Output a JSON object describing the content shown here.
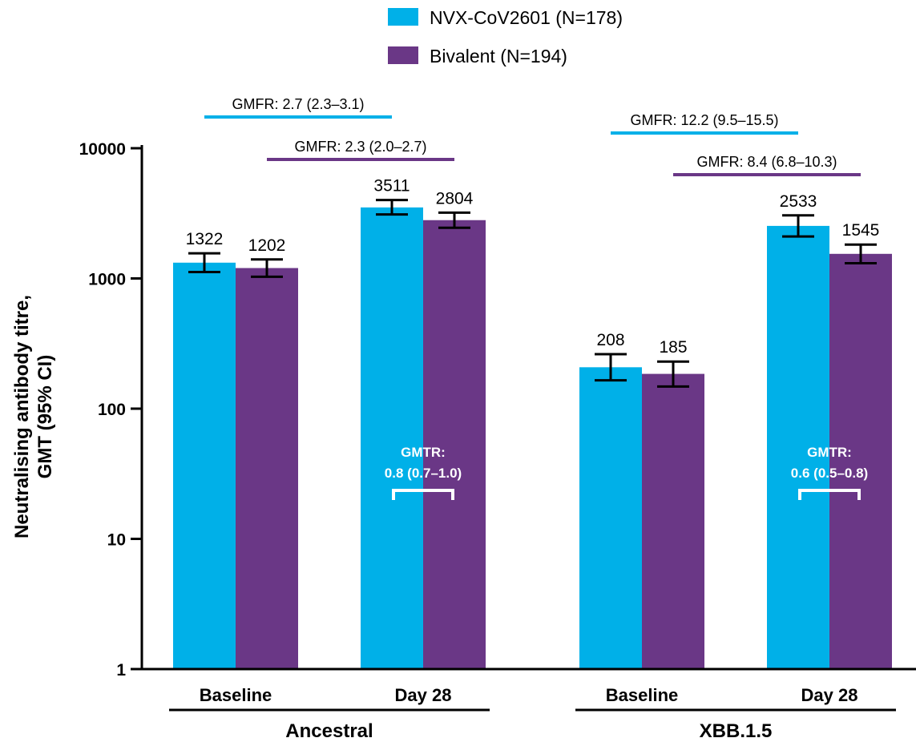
{
  "chart_data": {
    "type": "bar",
    "yscale": "log",
    "ylim": [
      1,
      10000
    ],
    "yticks": [
      1,
      10,
      100,
      1000,
      10000
    ],
    "ylabel": [
      "Neutralising antibody titre,",
      "GMT (95% CI)"
    ],
    "colors": {
      "NVX-CoV2601": "#00b0e8",
      "Bivalent": "#6a3786"
    },
    "series": [
      {
        "name": "NVX-CoV2601 (N=178)",
        "key": "NVX-CoV2601"
      },
      {
        "name": "Bivalent (N=194)",
        "key": "Bivalent"
      }
    ],
    "groups": [
      {
        "label": "Ancestral",
        "timepoints": [
          {
            "label": "Baseline",
            "bars": [
              {
                "series": "NVX-CoV2601",
                "value": 1322,
                "ci": [
                  1120,
                  1560
                ]
              },
              {
                "series": "Bivalent",
                "value": 1202,
                "ci": [
                  1030,
                  1400
                ]
              }
            ]
          },
          {
            "label": "Day 28",
            "bars": [
              {
                "series": "NVX-CoV2601",
                "value": 3511,
                "ci": [
                  3100,
                  4000
                ]
              },
              {
                "series": "Bivalent",
                "value": 2804,
                "ci": [
                  2450,
                  3200
                ]
              }
            ]
          }
        ],
        "gmfr": [
          {
            "series": "NVX-CoV2601",
            "text": "GMFR: 2.7 (2.3–3.1)"
          },
          {
            "series": "Bivalent",
            "text": "GMFR: 2.3 (2.0–2.7)"
          }
        ],
        "gmtr": {
          "line1": "GMTR:",
          "line2": "0.8 (0.7–1.0)"
        }
      },
      {
        "label": "XBB.1.5",
        "timepoints": [
          {
            "label": "Baseline",
            "bars": [
              {
                "series": "NVX-CoV2601",
                "value": 208,
                "ci": [
                  165,
                  262
                ]
              },
              {
                "series": "Bivalent",
                "value": 185,
                "ci": [
                  148,
                  230
                ]
              }
            ]
          },
          {
            "label": "Day 28",
            "bars": [
              {
                "series": "NVX-CoV2601",
                "value": 2533,
                "ci": [
                  2100,
                  3050
                ]
              },
              {
                "series": "Bivalent",
                "value": 1545,
                "ci": [
                  1310,
                  1820
                ]
              }
            ]
          }
        ],
        "gmfr": [
          {
            "series": "NVX-CoV2601",
            "text": "GMFR: 12.2 (9.5–15.5)"
          },
          {
            "series": "Bivalent",
            "text": "GMFR: 8.4 (6.8–10.3)"
          }
        ],
        "gmtr": {
          "line1": "GMTR:",
          "line2": "0.6 (0.5–0.8)"
        }
      }
    ]
  }
}
